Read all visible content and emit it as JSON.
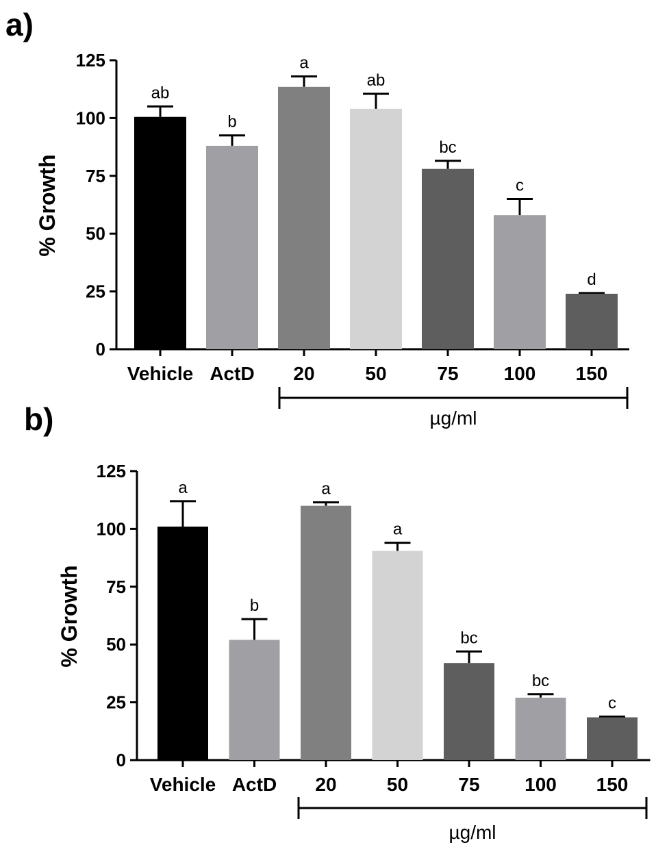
{
  "chart_data": [
    {
      "type": "bar",
      "panel_label": "a)",
      "ylabel": "% Growth",
      "ylim": [
        0,
        125
      ],
      "yticks": [
        "0",
        "25",
        "50",
        "75",
        "100",
        "125"
      ],
      "categories": [
        "Vehicle",
        "ActD",
        "20",
        "50",
        "75",
        "100",
        "150"
      ],
      "values": [
        100.5,
        88,
        113.5,
        104,
        78,
        58,
        24
      ],
      "errors": [
        4.5,
        4.5,
        4.5,
        6.5,
        3.5,
        7,
        0.3
      ],
      "significance": [
        "ab",
        "b",
        "a",
        "ab",
        "bc",
        "c",
        "d"
      ],
      "bar_colors": [
        "#000000",
        "#a0a0a4",
        "#808080",
        "#d3d3d3",
        "#5e5e5e",
        "#a0a0a4",
        "#5e5e5e"
      ],
      "group_bracket_label": "µg/ml",
      "grid": false
    },
    {
      "type": "bar",
      "panel_label": "b)",
      "ylabel": "% Growth",
      "ylim": [
        0,
        125
      ],
      "yticks": [
        "0",
        "25",
        "50",
        "75",
        "100",
        "125"
      ],
      "categories": [
        "Vehicle",
        "ActD",
        "20",
        "50",
        "75",
        "100",
        "150"
      ],
      "values": [
        101,
        52,
        110,
        90.5,
        42,
        27,
        18.5
      ],
      "errors": [
        11,
        9,
        1.5,
        3.5,
        5,
        1.5,
        0.3
      ],
      "significance": [
        "a",
        "b",
        "a",
        "a",
        "bc",
        "bc",
        "c"
      ],
      "bar_colors": [
        "#000000",
        "#a0a0a4",
        "#808080",
        "#d3d3d3",
        "#5e5e5e",
        "#a0a0a4",
        "#5e5e5e"
      ],
      "group_bracket_label": "µg/ml",
      "grid": false
    }
  ]
}
